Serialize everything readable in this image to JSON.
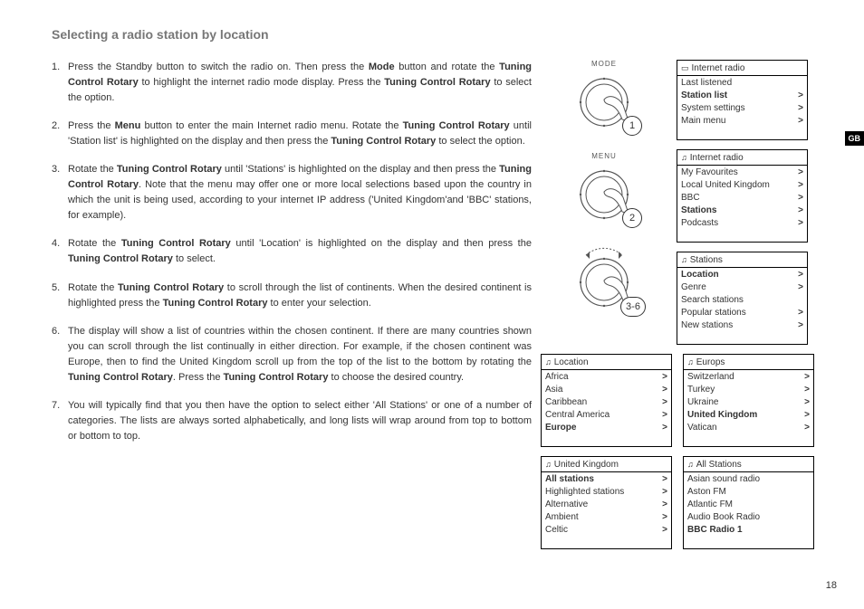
{
  "title": "Selecting a radio station by location",
  "gb_label": "GB",
  "page_number": "18",
  "steps": [
    {
      "n": "1.",
      "html": "Press the Standby button to switch the radio on. Then press the <b>Mode</b> button and rotate the <b>Tuning Control Rotary</b> to highlight the internet radio mode display. Press the <b>Tuning Control Rotary</b> to select the option."
    },
    {
      "n": "2.",
      "html": "Press the <b>Menu</b> button to enter the main Internet radio menu. Rotate the <b>Tuning Control Rotary</b> until 'Station list' is highlighted on the display and then press the <b>Tuning Control Rotary</b> to select the option."
    },
    {
      "n": "3.",
      "html": "Rotate the <b>Tuning Control Rotary</b> until 'Stations' is highlighted on the display and then press the <b>Tuning Control Rotary</b>. Note that the menu may offer one or more local selections based upon the country in which the unit is being used, according to your internet IP address ('United Kingdom'and 'BBC' stations, for example)."
    },
    {
      "n": "4.",
      "html": "Rotate the <b>Tuning Control Rotary</b> until 'Location' is highlighted on the display and then press the <b>Tuning Control Rotary</b> to select."
    },
    {
      "n": "5.",
      "html": "Rotate the <b>Tuning Control Rotary</b> to scroll through the list of continents. When the desired continent is highlighted press the <b>Tuning Control Rotary</b> to enter your selection."
    },
    {
      "n": "6.",
      "html": "The display will show a list of countries within the chosen continent. If there are many countries shown you can scroll through the list continually in either direction. For example, if the chosen continent was Europe, then to find the United Kingdom scroll up from the top of the list to the bottom by rotating the <b>Tuning Control Rotary</b>. Press the <b>Tuning Control Rotary</b> to choose the desired country."
    },
    {
      "n": "7.",
      "html": "You will typically find that you then have the option to select either 'All Stations' or one of a number of categories. The lists are always sorted alphabetically, and long lists will wrap around from top to bottom or bottom to top."
    }
  ],
  "dials": [
    {
      "label": "MODE",
      "badge": "1",
      "type": "press"
    },
    {
      "label": "MENU",
      "badge": "2",
      "type": "press"
    },
    {
      "label": "",
      "badge": "3-6",
      "type": "rotate"
    }
  ],
  "menus_right": [
    {
      "icon": "radio",
      "title": "Internet radio",
      "rows": [
        {
          "t": "Last listened",
          "a": "",
          "sel": false
        },
        {
          "t": "Station list",
          "a": ">",
          "sel": true
        },
        {
          "t": "System settings",
          "a": ">",
          "sel": false
        },
        {
          "t": "Main menu",
          "a": ">",
          "sel": false
        }
      ]
    },
    {
      "icon": "note",
      "title": "Internet radio",
      "rows": [
        {
          "t": "My Favourites",
          "a": ">",
          "sel": false
        },
        {
          "t": "Local United Kingdom",
          "a": ">",
          "sel": false
        },
        {
          "t": "BBC",
          "a": ">",
          "sel": false
        },
        {
          "t": "Stations",
          "a": ">",
          "sel": true
        },
        {
          "t": "Podcasts",
          "a": ">",
          "sel": false
        }
      ]
    },
    {
      "icon": "note",
      "title": "Stations",
      "rows": [
        {
          "t": "Location",
          "a": ">",
          "sel": true
        },
        {
          "t": "Genre",
          "a": ">",
          "sel": false
        },
        {
          "t": "Search stations",
          "a": "",
          "sel": false
        },
        {
          "t": "Popular stations",
          "a": ">",
          "sel": false
        },
        {
          "t": "New stations",
          "a": ">",
          "sel": false
        }
      ]
    }
  ],
  "menus_bottom_left": [
    {
      "icon": "note",
      "title": "Location",
      "rows": [
        {
          "t": "Africa",
          "a": ">",
          "sel": false
        },
        {
          "t": "Asia",
          "a": ">",
          "sel": false
        },
        {
          "t": "Caribbean",
          "a": ">",
          "sel": false
        },
        {
          "t": "Central America",
          "a": ">",
          "sel": false
        },
        {
          "t": "Europe",
          "a": ">",
          "sel": true
        }
      ]
    },
    {
      "icon": "note",
      "title": "United Kingdom",
      "rows": [
        {
          "t": "All stations",
          "a": ">",
          "sel": true
        },
        {
          "t": "Highlighted stations",
          "a": ">",
          "sel": false
        },
        {
          "t": "Alternative",
          "a": ">",
          "sel": false
        },
        {
          "t": "Ambient",
          "a": ">",
          "sel": false
        },
        {
          "t": "Celtic",
          "a": ">",
          "sel": false
        }
      ]
    }
  ],
  "menus_bottom_right": [
    {
      "icon": "note",
      "title": "Europs",
      "rows": [
        {
          "t": "Switzerland",
          "a": ">",
          "sel": false
        },
        {
          "t": "Turkey",
          "a": ">",
          "sel": false
        },
        {
          "t": "Ukraine",
          "a": ">",
          "sel": false
        },
        {
          "t": "United Kingdom",
          "a": ">",
          "sel": true
        },
        {
          "t": "Vatican",
          "a": ">",
          "sel": false
        }
      ]
    },
    {
      "icon": "note",
      "title": "All Stations",
      "rows": [
        {
          "t": "Asian sound radio",
          "a": "",
          "sel": false
        },
        {
          "t": "Aston FM",
          "a": "",
          "sel": false
        },
        {
          "t": "Atlantic FM",
          "a": "",
          "sel": false
        },
        {
          "t": "Audio Book Radio",
          "a": "",
          "sel": false
        },
        {
          "t": "BBC Radio 1",
          "a": "",
          "sel": true
        }
      ]
    }
  ]
}
